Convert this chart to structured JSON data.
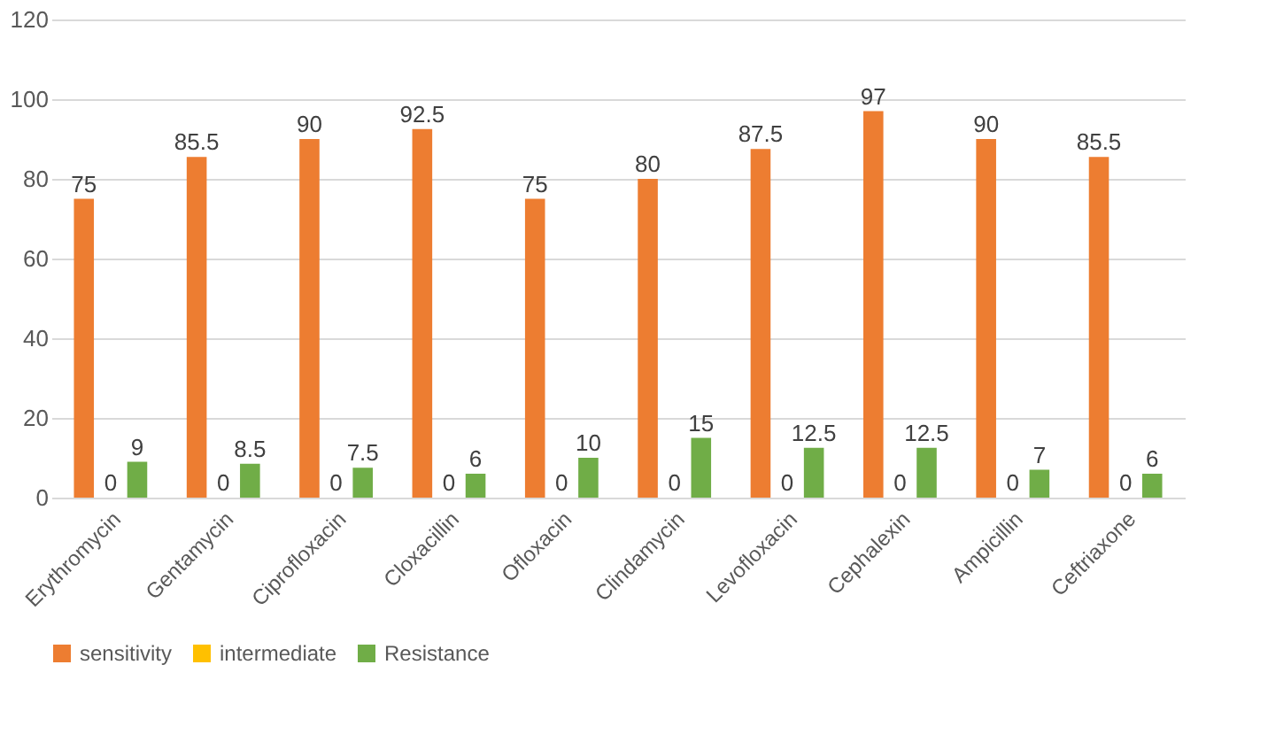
{
  "chart_data": {
    "type": "bar",
    "categories": [
      "Erythromycin",
      "Gentamycin",
      "Ciprofloxacin",
      "Cloxacillin",
      "Ofloxacin",
      "Clindamycin",
      "Levofloxacin",
      "Cephalexin",
      "Ampicillin",
      "Ceftriaxone"
    ],
    "series": [
      {
        "name": "sensitivity",
        "color": "#ed7d31",
        "values": [
          75,
          85.5,
          90,
          92.5,
          75,
          80,
          87.5,
          97,
          90,
          85.5
        ]
      },
      {
        "name": "intermediate",
        "color": "#ffc000",
        "values": [
          0,
          0,
          0,
          0,
          0,
          0,
          0,
          0,
          0,
          0
        ]
      },
      {
        "name": "Resistance",
        "color": "#70ad47",
        "values": [
          9,
          8.5,
          7.5,
          6,
          10,
          15,
          12.5,
          12.5,
          7,
          6
        ]
      }
    ],
    "ylim": [
      0,
      120
    ],
    "yticks": [
      0,
      20,
      40,
      60,
      80,
      100,
      120
    ],
    "grid": "y",
    "legend": "bottom",
    "data_labels": true
  }
}
